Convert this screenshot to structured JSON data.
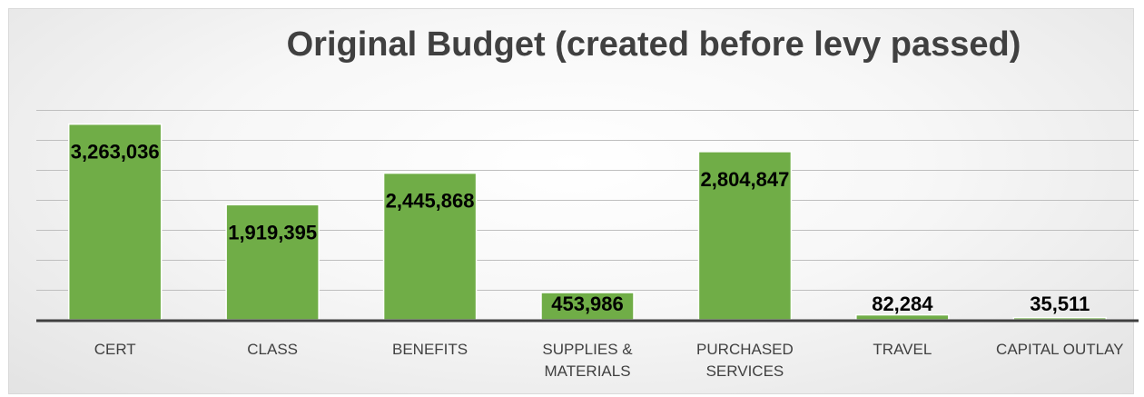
{
  "chart_data": {
    "type": "bar",
    "title": "Original Budget (created before levy passed)",
    "categories": [
      [
        "CERT"
      ],
      [
        "CLASS"
      ],
      [
        "BENEFITS"
      ],
      [
        "SUPPLIES &",
        "MATERIALS"
      ],
      [
        "PURCHASED",
        "SERVICES"
      ],
      [
        "TRAVEL"
      ],
      [
        "CAPITAL OUTLAY"
      ]
    ],
    "values": [
      3263036,
      1919395,
      2445868,
      453986,
      2804847,
      82284,
      35511
    ],
    "data_labels": [
      "3,263,036",
      "1,919,395",
      "2,445,868",
      "453,986",
      "2,804,847",
      "82,284",
      "35,511"
    ],
    "ylim": [
      0,
      3500000
    ],
    "gridline_step": 500000,
    "grid": true,
    "legend": "none",
    "xlabel": "",
    "ylabel": "",
    "colors": {
      "bar_fill": "#70AD47",
      "bar_stroke": "#ffffff",
      "gridline": "#bfbfbf",
      "axis": "#404040"
    }
  }
}
